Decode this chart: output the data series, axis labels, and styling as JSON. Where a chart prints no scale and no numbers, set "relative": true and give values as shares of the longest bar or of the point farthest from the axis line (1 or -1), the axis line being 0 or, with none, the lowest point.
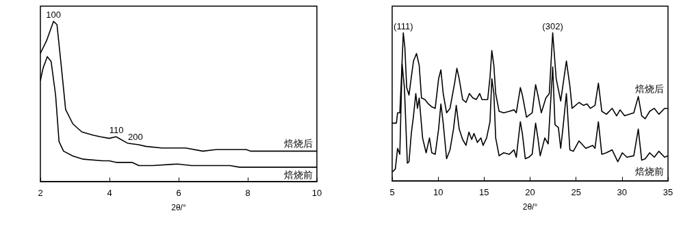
{
  "chart_data": [
    {
      "type": "line",
      "relative": true,
      "xlabel": "2θ/°",
      "xlim": [
        2,
        10
      ],
      "xticks": [
        2,
        4,
        6,
        8,
        10
      ],
      "grid": false,
      "legend": false,
      "marker": "none",
      "line_style": "solid",
      "tick_labels": "x",
      "annotations": [
        {
          "text": "100",
          "x": 2.38,
          "y": 1.0
        },
        {
          "text": "110",
          "x": 4.2,
          "y": 0.28
        },
        {
          "text": "200",
          "x": 4.75,
          "y": 0.24
        }
      ],
      "series": [
        {
          "name": "焙烧后",
          "color": "#000000",
          "x": [
            2,
            2.18,
            2.38,
            2.48,
            2.61,
            2.73,
            2.94,
            3.2,
            3.53,
            3.73,
            3.99,
            4.19,
            4.52,
            4.85,
            5.05,
            5.51,
            5.91,
            6.2,
            6.7,
            7.1,
            7.95,
            8.09,
            10
          ],
          "values": [
            0.8,
            0.88,
            1.0,
            0.98,
            0.71,
            0.45,
            0.36,
            0.31,
            0.29,
            0.28,
            0.27,
            0.28,
            0.24,
            0.23,
            0.22,
            0.21,
            0.21,
            0.21,
            0.19,
            0.2,
            0.2,
            0.19,
            0.19
          ]
        },
        {
          "name": "焙烧前",
          "color": "#000000",
          "x": [
            2,
            2.08,
            2.2,
            2.31,
            2.44,
            2.54,
            2.67,
            2.94,
            3.24,
            3.8,
            3.99,
            4.19,
            4.65,
            4.85,
            5.25,
            5.97,
            6.37,
            7.49,
            7.76,
            10
          ],
          "values": [
            0.63,
            0.71,
            0.78,
            0.75,
            0.54,
            0.25,
            0.19,
            0.16,
            0.14,
            0.13,
            0.13,
            0.12,
            0.12,
            0.1,
            0.1,
            0.11,
            0.1,
            0.1,
            0.09,
            0.09
          ]
        }
      ]
    },
    {
      "type": "line",
      "relative": true,
      "xlabel": "2θ/°",
      "xlim": [
        5,
        35
      ],
      "xticks": [
        5,
        10,
        15,
        20,
        25,
        30,
        35
      ],
      "grid": false,
      "legend": false,
      "marker": "none",
      "line_style": "solid",
      "tick_labels": "x",
      "annotations": [
        {
          "text": "(111)",
          "x": 6.21,
          "y": 1.0
        },
        {
          "text": "(302)",
          "x": 22.46,
          "y": 1.0
        }
      ],
      "series": [
        {
          "name": "焙烧后",
          "color": "#000000",
          "x": [
            5,
            5.46,
            5.59,
            5.83,
            5.96,
            6.21,
            6.38,
            6.58,
            6.83,
            7.08,
            7.32,
            7.65,
            7.94,
            8.19,
            8.56,
            8.94,
            9.31,
            9.68,
            10.05,
            10.3,
            10.55,
            10.92,
            11.29,
            11.79,
            12.04,
            12.29,
            12.66,
            13.03,
            13.4,
            13.78,
            14.15,
            14.52,
            14.77,
            15.39,
            15.64,
            15.84,
            16.06,
            16.26,
            16.63,
            17.13,
            17.75,
            18.25,
            18.5,
            18.94,
            19.16,
            19.61,
            20.23,
            20.6,
            20.85,
            21.22,
            21.72,
            22.09,
            22.46,
            22.84,
            23.33,
            23.95,
            24.33,
            24.57,
            25.32,
            25.81,
            26.19,
            26.56,
            27.06,
            27.43,
            27.8,
            28.3,
            28.92,
            29.41,
            29.79,
            30.28,
            31.28,
            31.77,
            32.14,
            32.52,
            33.01,
            33.51,
            34.01,
            34.63,
            35
          ],
          "values": [
            0.39,
            0.39,
            0.46,
            0.46,
            0.63,
            1.0,
            0.9,
            0.63,
            0.58,
            0.7,
            0.81,
            0.86,
            0.78,
            0.56,
            0.55,
            0.52,
            0.5,
            0.49,
            0.69,
            0.75,
            0.59,
            0.46,
            0.49,
            0.66,
            0.76,
            0.69,
            0.55,
            0.53,
            0.59,
            0.56,
            0.55,
            0.59,
            0.55,
            0.55,
            0.7,
            0.88,
            0.78,
            0.59,
            0.47,
            0.46,
            0.47,
            0.48,
            0.46,
            0.63,
            0.58,
            0.43,
            0.46,
            0.65,
            0.58,
            0.46,
            0.56,
            0.59,
            1.0,
            0.69,
            0.54,
            0.81,
            0.64,
            0.49,
            0.53,
            0.51,
            0.52,
            0.49,
            0.51,
            0.66,
            0.47,
            0.45,
            0.49,
            0.44,
            0.48,
            0.44,
            0.46,
            0.57,
            0.44,
            0.42,
            0.47,
            0.49,
            0.45,
            0.49,
            0.49
          ]
        },
        {
          "name": "焙烧前",
          "color": "#000000",
          "x": [
            5,
            5.34,
            5.59,
            5.83,
            6.08,
            6.33,
            6.65,
            6.83,
            7.08,
            7.32,
            7.57,
            7.75,
            7.94,
            8.31,
            8.69,
            9.06,
            9.31,
            9.68,
            10.05,
            10.3,
            10.55,
            10.92,
            11.29,
            11.67,
            11.97,
            12.29,
            12.66,
            13.03,
            13.35,
            13.65,
            13.9,
            14.27,
            14.65,
            14.89,
            15.27,
            15.64,
            15.84,
            16.06,
            16.26,
            16.63,
            17.13,
            17.75,
            18.25,
            18.5,
            18.94,
            19.16,
            19.48,
            19.86,
            20.23,
            20.6,
            20.85,
            21.1,
            21.6,
            21.97,
            22.46,
            22.71,
            23.08,
            23.33,
            23.58,
            23.95,
            24.33,
            24.7,
            25.32,
            26.06,
            26.81,
            27.06,
            27.43,
            27.8,
            28.3,
            28.92,
            29.54,
            30.03,
            30.53,
            31.28,
            31.77,
            32.14,
            32.52,
            33.01,
            33.51,
            34.01,
            34.63,
            35
          ],
          "values": [
            0.06,
            0.08,
            0.22,
            0.18,
            0.79,
            0.63,
            0.12,
            0.13,
            0.32,
            0.44,
            0.59,
            0.49,
            0.56,
            0.29,
            0.19,
            0.29,
            0.19,
            0.18,
            0.35,
            0.52,
            0.39,
            0.15,
            0.21,
            0.35,
            0.51,
            0.35,
            0.28,
            0.24,
            0.33,
            0.28,
            0.32,
            0.26,
            0.29,
            0.24,
            0.29,
            0.4,
            0.69,
            0.59,
            0.29,
            0.17,
            0.19,
            0.18,
            0.21,
            0.16,
            0.4,
            0.32,
            0.15,
            0.16,
            0.18,
            0.39,
            0.29,
            0.17,
            0.29,
            0.25,
            0.77,
            0.38,
            0.36,
            0.22,
            0.36,
            0.59,
            0.21,
            0.2,
            0.27,
            0.22,
            0.24,
            0.22,
            0.4,
            0.18,
            0.19,
            0.21,
            0.13,
            0.19,
            0.16,
            0.17,
            0.35,
            0.14,
            0.15,
            0.19,
            0.16,
            0.2,
            0.16,
            0.17
          ]
        }
      ]
    }
  ]
}
